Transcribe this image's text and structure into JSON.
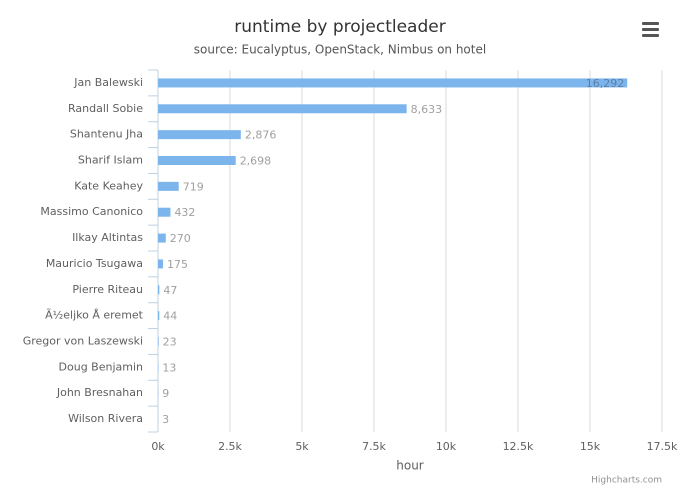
{
  "chart_data": {
    "type": "bar",
    "title": "runtime by projectleader",
    "subtitle": "source: Eucalyptus, OpenStack, Nimbus on hotel",
    "categories": [
      "Jan Balewski",
      "Randall Sobie",
      "Shantenu Jha",
      "Sharif Islam",
      "Kate Keahey",
      "Massimo Canonico",
      "Ilkay Altintas",
      "Mauricio Tsugawa",
      "Pierre Riteau",
      "Ã½eljko Å eremet",
      "Gregor von Laszewski",
      "Doug Benjamin",
      "John Bresnahan",
      "Wilson Rivera"
    ],
    "values": [
      16292,
      8633,
      2876,
      2698,
      719,
      432,
      270,
      175,
      47,
      44,
      23,
      13,
      9,
      3
    ],
    "value_labels": [
      "16,292",
      "8,633",
      "2,876",
      "2,698",
      "719",
      "432",
      "270",
      "175",
      "47",
      "44",
      "23",
      "13",
      "9",
      "3"
    ],
    "color": "#7cb5ec",
    "xlabel": "hour",
    "xlim": [
      0,
      17500
    ],
    "xticks": [
      {
        "value": 0,
        "label": "0k"
      },
      {
        "value": 2500,
        "label": "2.5k"
      },
      {
        "value": 5000,
        "label": "5k"
      },
      {
        "value": 7500,
        "label": "7.5k"
      },
      {
        "value": 10000,
        "label": "10k"
      },
      {
        "value": 12500,
        "label": "12.5k"
      },
      {
        "value": 15000,
        "label": "15k"
      },
      {
        "value": 17500,
        "label": "17.5k"
      }
    ],
    "grid": true,
    "credits": "Highcharts.com"
  }
}
